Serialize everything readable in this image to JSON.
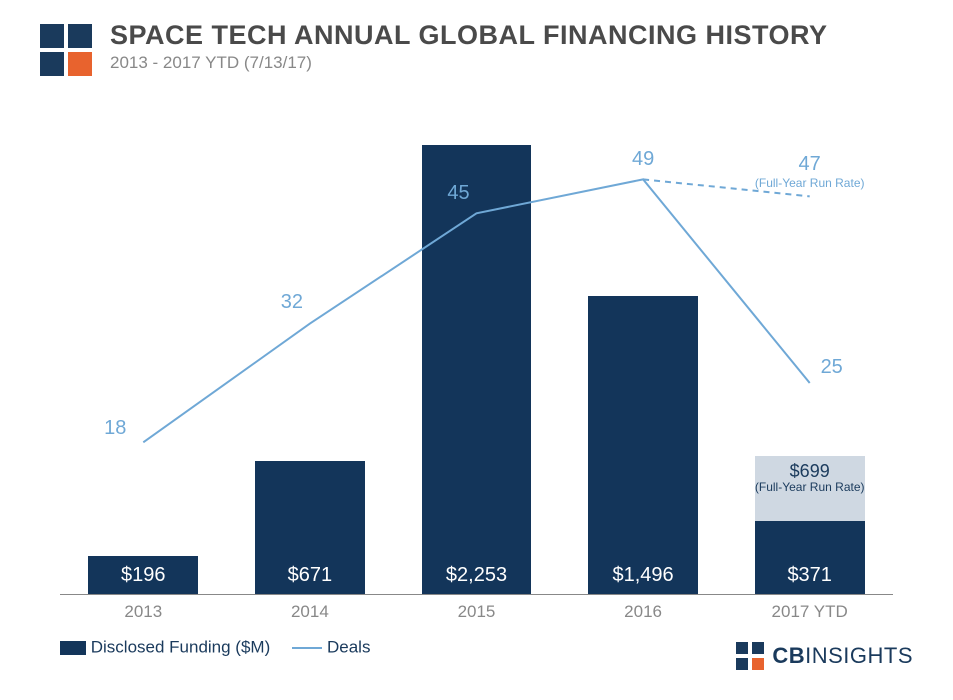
{
  "header": {
    "title": "SPACE TECH ANNUAL GLOBAL FINANCING HISTORY",
    "subtitle": "2013 - 2017 YTD (7/13/17)"
  },
  "logo_colors": {
    "navy": "#1a3a5c",
    "orange": "#e8632e"
  },
  "chart": {
    "type": "bar+line",
    "categories": [
      "2013",
      "2014",
      "2015",
      "2016",
      "2017 YTD"
    ],
    "bars": {
      "series_name": "Disclosed Funding ($M)",
      "values": [
        196,
        671,
        2253,
        1496,
        371
      ],
      "value_labels": [
        "$196",
        "$671",
        "$2,253",
        "$1,496",
        "$371"
      ],
      "color": "#13355a",
      "run_rate": {
        "index": 4,
        "value": 699,
        "label": "$699",
        "sublabel": "(Full-Year Run Rate)",
        "color": "#cfd8e2"
      },
      "bar_width_frac": 0.66,
      "ymax": 2380
    },
    "line": {
      "series_name": "Deals",
      "values": [
        18,
        32,
        45,
        49,
        25
      ],
      "color": "#6fa8d6",
      "stroke_width": 2,
      "ymax": 56,
      "run_rate": {
        "from_index": 3,
        "value": 47,
        "label": "47",
        "sublabel": "(Full-Year Run Rate)",
        "dash": "6,5"
      }
    },
    "axis_color": "#888888",
    "background": "#ffffff"
  },
  "legend": {
    "bar": "Disclosed Funding ($M)",
    "line": "Deals"
  },
  "footer_brand": {
    "bold": "CB",
    "light": "INSIGHTS"
  }
}
